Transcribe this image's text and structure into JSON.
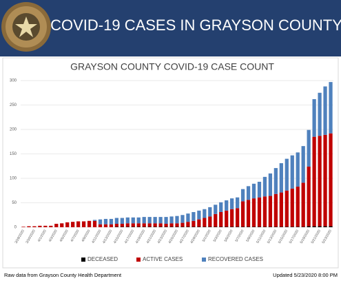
{
  "header": {
    "title": "COVID-19 CASES IN GRAYSON COUNTY"
  },
  "chart_data": {
    "type": "stacked-bar",
    "title": "GRAYSON COUNTY COVID-19 CASE COUNT",
    "categories": [
      "3/28/2020",
      null,
      "3/30/2020",
      null,
      "4/1/2020",
      null,
      "4/3/2020",
      null,
      "4/5/2020",
      null,
      "4/7/2020",
      null,
      "4/9/2020",
      null,
      "4/11/2020",
      null,
      "4/13/2020",
      null,
      "4/15/2020",
      null,
      "4/17/2020",
      null,
      "4/19/2020",
      null,
      "4/21/2020",
      null,
      "4/23/2020",
      null,
      "4/25/2020",
      null,
      "4/27/2020",
      null,
      "4/29/2020",
      null,
      "5/1/2020",
      null,
      "5/3/2020",
      null,
      "5/5/2020",
      null,
      "5/7/2020",
      null,
      "5/9/2020",
      null,
      "5/11/2020",
      null,
      "5/13/2020",
      null,
      "5/15/2020",
      null,
      "5/17/2020",
      null,
      "5/19/2020",
      null,
      "5/21/2020",
      null,
      "5/23/2020"
    ],
    "series": [
      {
        "name": "DECEASED",
        "color": "#000000",
        "values": [
          0,
          0,
          0,
          0,
          0,
          0,
          0,
          0,
          0,
          0,
          0,
          0,
          0,
          0,
          0,
          0,
          0,
          1,
          1,
          1,
          1,
          1,
          1,
          1,
          1,
          1,
          1,
          1,
          1,
          1,
          1,
          1,
          1,
          1,
          1,
          1,
          1,
          1,
          1,
          1,
          1,
          1,
          1,
          1,
          1,
          1,
          1,
          1,
          1,
          1,
          1,
          1,
          2,
          2,
          2,
          2,
          2
        ]
      },
      {
        "name": "ACTIVE CASES",
        "color": "#c00000",
        "values": [
          1,
          2,
          2,
          3,
          3,
          3,
          7,
          8,
          10,
          11,
          12,
          12,
          13,
          13,
          6,
          6,
          6,
          6,
          6,
          7,
          7,
          7,
          7,
          7,
          7,
          7,
          6,
          7,
          7,
          8,
          10,
          12,
          15,
          18,
          21,
          26,
          30,
          33,
          36,
          38,
          52,
          55,
          58,
          60,
          62,
          63,
          67,
          70,
          74,
          78,
          82,
          90,
          122,
          183,
          185,
          187,
          190
        ]
      },
      {
        "name": "RECOVERED CASES",
        "color": "#4f81bd",
        "values": [
          0,
          0,
          0,
          0,
          0,
          0,
          0,
          0,
          0,
          0,
          0,
          0,
          0,
          2,
          10,
          11,
          11,
          12,
          12,
          12,
          12,
          12,
          13,
          13,
          13,
          13,
          14,
          14,
          15,
          16,
          17,
          18,
          18,
          18,
          19,
          19,
          20,
          21,
          22,
          22,
          25,
          28,
          30,
          32,
          40,
          46,
          53,
          60,
          65,
          68,
          70,
          75,
          75,
          77,
          88,
          99,
          105
        ]
      }
    ],
    "ylim": [
      0,
      300
    ],
    "yticks": [
      0,
      50,
      100,
      150,
      200,
      250,
      300
    ],
    "grid": true,
    "legend": "bottom"
  },
  "footer": {
    "source": "Raw data from Grayson County Health Department",
    "updated": "Updated 5/23/2020 8:00 PM"
  }
}
